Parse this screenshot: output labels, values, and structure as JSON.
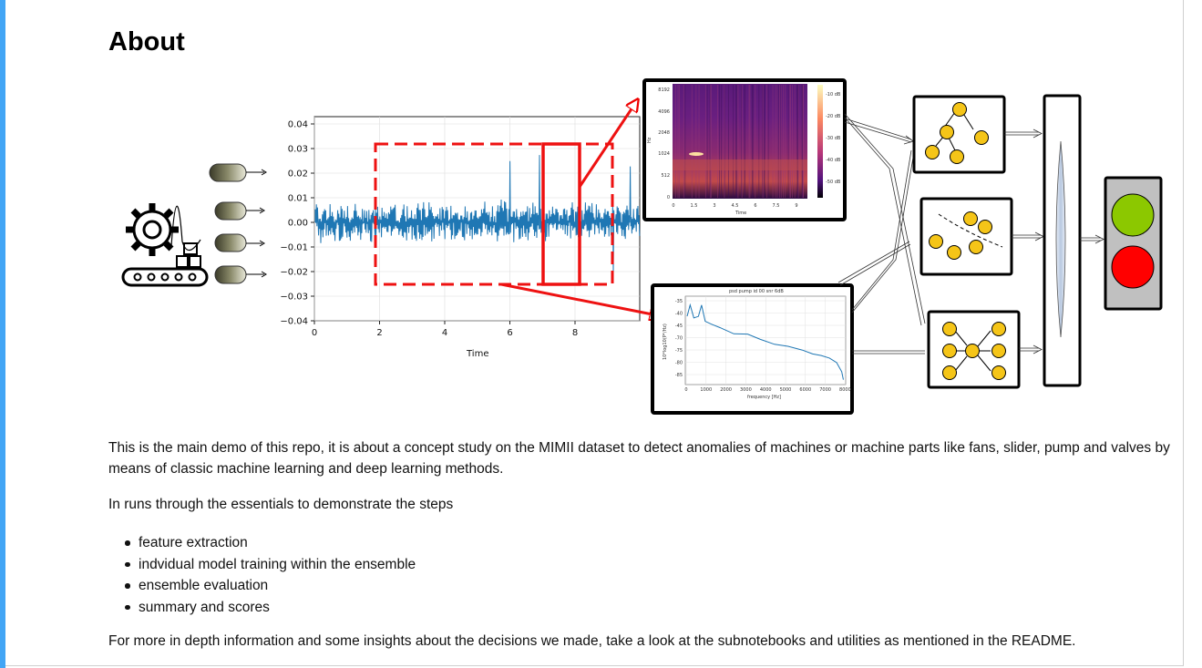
{
  "about": {
    "title": "About",
    "paragraph1": "This is the main demo of this repo, it is about a concept study on the MIMII dataset to detect anomalies of machines or machine parts like fans, slider, pump and valves by means of classic machine learning and deep learning methods.",
    "paragraph2": "In runs through the essentials to demonstrate the steps",
    "steps": [
      "feature extraction",
      "indvidual model training within the ensemble",
      "ensemble evaluation",
      "summary and scores"
    ],
    "paragraph3": "For more in depth information and some insights about the decisions we made, take a look at the subnotebooks and utilities as mentioned in the README."
  },
  "figure": {
    "waveform": {
      "xlabel": "Time",
      "yticks": [
        "0.04",
        "0.03",
        "0.02",
        "0.01",
        "0.00",
        "−0.01",
        "−0.02",
        "−0.03",
        "−0.04"
      ],
      "xticks": [
        "0",
        "2",
        "4",
        "6",
        "8"
      ]
    },
    "spectrogram": {
      "ylabel": "Hz",
      "xlabel": "Time",
      "yticks": [
        "8192",
        "4096",
        "2048",
        "1024",
        "512",
        "0"
      ],
      "xticks": [
        "0",
        "1.5",
        "3",
        "4.5",
        "6",
        "7.5",
        "9"
      ],
      "colorbar": [
        "-10 dB",
        "-20 dB",
        "-30 dB",
        "-40 dB",
        "-50 dB"
      ]
    },
    "psd": {
      "title": "psd pump id 00 snr 6dB",
      "ylabel": "10*log10(P²/Hz)",
      "xlabel": "frequency [Hz]",
      "yticks": [
        "-35",
        "-40",
        "-45",
        "-70",
        "-75",
        "-80",
        "-85"
      ],
      "xticks": [
        "0",
        "1000",
        "2000",
        "3000",
        "4000",
        "5000",
        "6000",
        "7000",
        "8000"
      ]
    },
    "colors": {
      "accent": "#ff0000",
      "signal": "#1f77b4",
      "node": "#f5c518",
      "green_light": "#8cc800",
      "red_light": "#ff0000",
      "housing": "#c0c0c0"
    },
    "icons": [
      "machine-gear-icon",
      "conveyor-icon",
      "microphone-icon",
      "traffic-light-icon"
    ]
  }
}
